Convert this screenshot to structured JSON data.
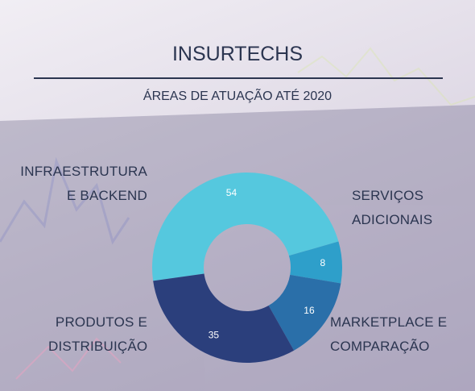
{
  "chart_data": {
    "type": "donut",
    "title": "INSURTECHS",
    "subtitle": "ÁREAS DE ATUAÇÃO ATÉ 2020",
    "categories": [
      "INFRAESTRUTURA E BACKEND",
      "SERVIÇOS ADICIONAIS",
      "MARKETPLACE E COMPARAÇÃO",
      "PRODUTOS E DISTRIBUIÇÃO"
    ],
    "values": [
      54,
      8,
      16,
      35
    ],
    "colors": [
      "#55c8de",
      "#2e9fca",
      "#2a6fa9",
      "#2b3f7c"
    ]
  }
}
